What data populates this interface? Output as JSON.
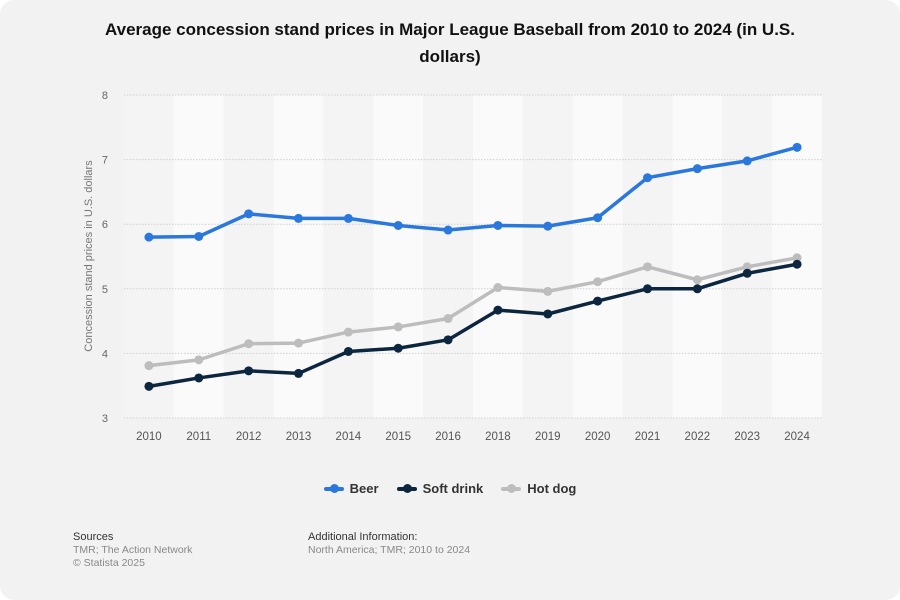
{
  "chart_data": {
    "type": "line",
    "title": "Average concession stand prices in Major League Baseball from 2010 to 2024 (in U.S. dollars)",
    "xlabel": "",
    "ylabel": "Concession stand prices in U.S. dollars",
    "categories": [
      "2010",
      "2011",
      "2012",
      "2013",
      "2014",
      "2015",
      "2016",
      "2018",
      "2019",
      "2020",
      "2021",
      "2022",
      "2023",
      "2024"
    ],
    "ylim": [
      3,
      8
    ],
    "yticks": [
      3,
      4,
      5,
      6,
      7,
      8
    ],
    "grid": true,
    "legend": "bottom",
    "series": [
      {
        "name": "Beer",
        "color": "#2a78de",
        "values": [
          5.8,
          5.81,
          6.16,
          6.09,
          6.09,
          5.98,
          5.91,
          5.98,
          5.97,
          6.1,
          6.72,
          6.86,
          6.98,
          7.19
        ]
      },
      {
        "name": "Soft drink",
        "color": "#0c2640",
        "values": [
          3.49,
          3.62,
          3.73,
          3.69,
          4.03,
          4.08,
          4.21,
          4.67,
          4.61,
          4.81,
          5.0,
          5.0,
          5.24,
          5.38
        ]
      },
      {
        "name": "Hot dog",
        "color": "#bdbdbd",
        "values": [
          3.81,
          3.9,
          4.15,
          4.16,
          4.33,
          4.41,
          4.54,
          5.02,
          4.96,
          5.11,
          5.34,
          5.14,
          5.34,
          5.48
        ]
      }
    ]
  },
  "footer": {
    "sources_heading": "Sources",
    "sources_line1": "TMR; The Action Network",
    "sources_line2": "© Statista 2025",
    "info_heading": "Additional Information:",
    "info_line1": "North America; TMR; 2010 to 2024"
  }
}
